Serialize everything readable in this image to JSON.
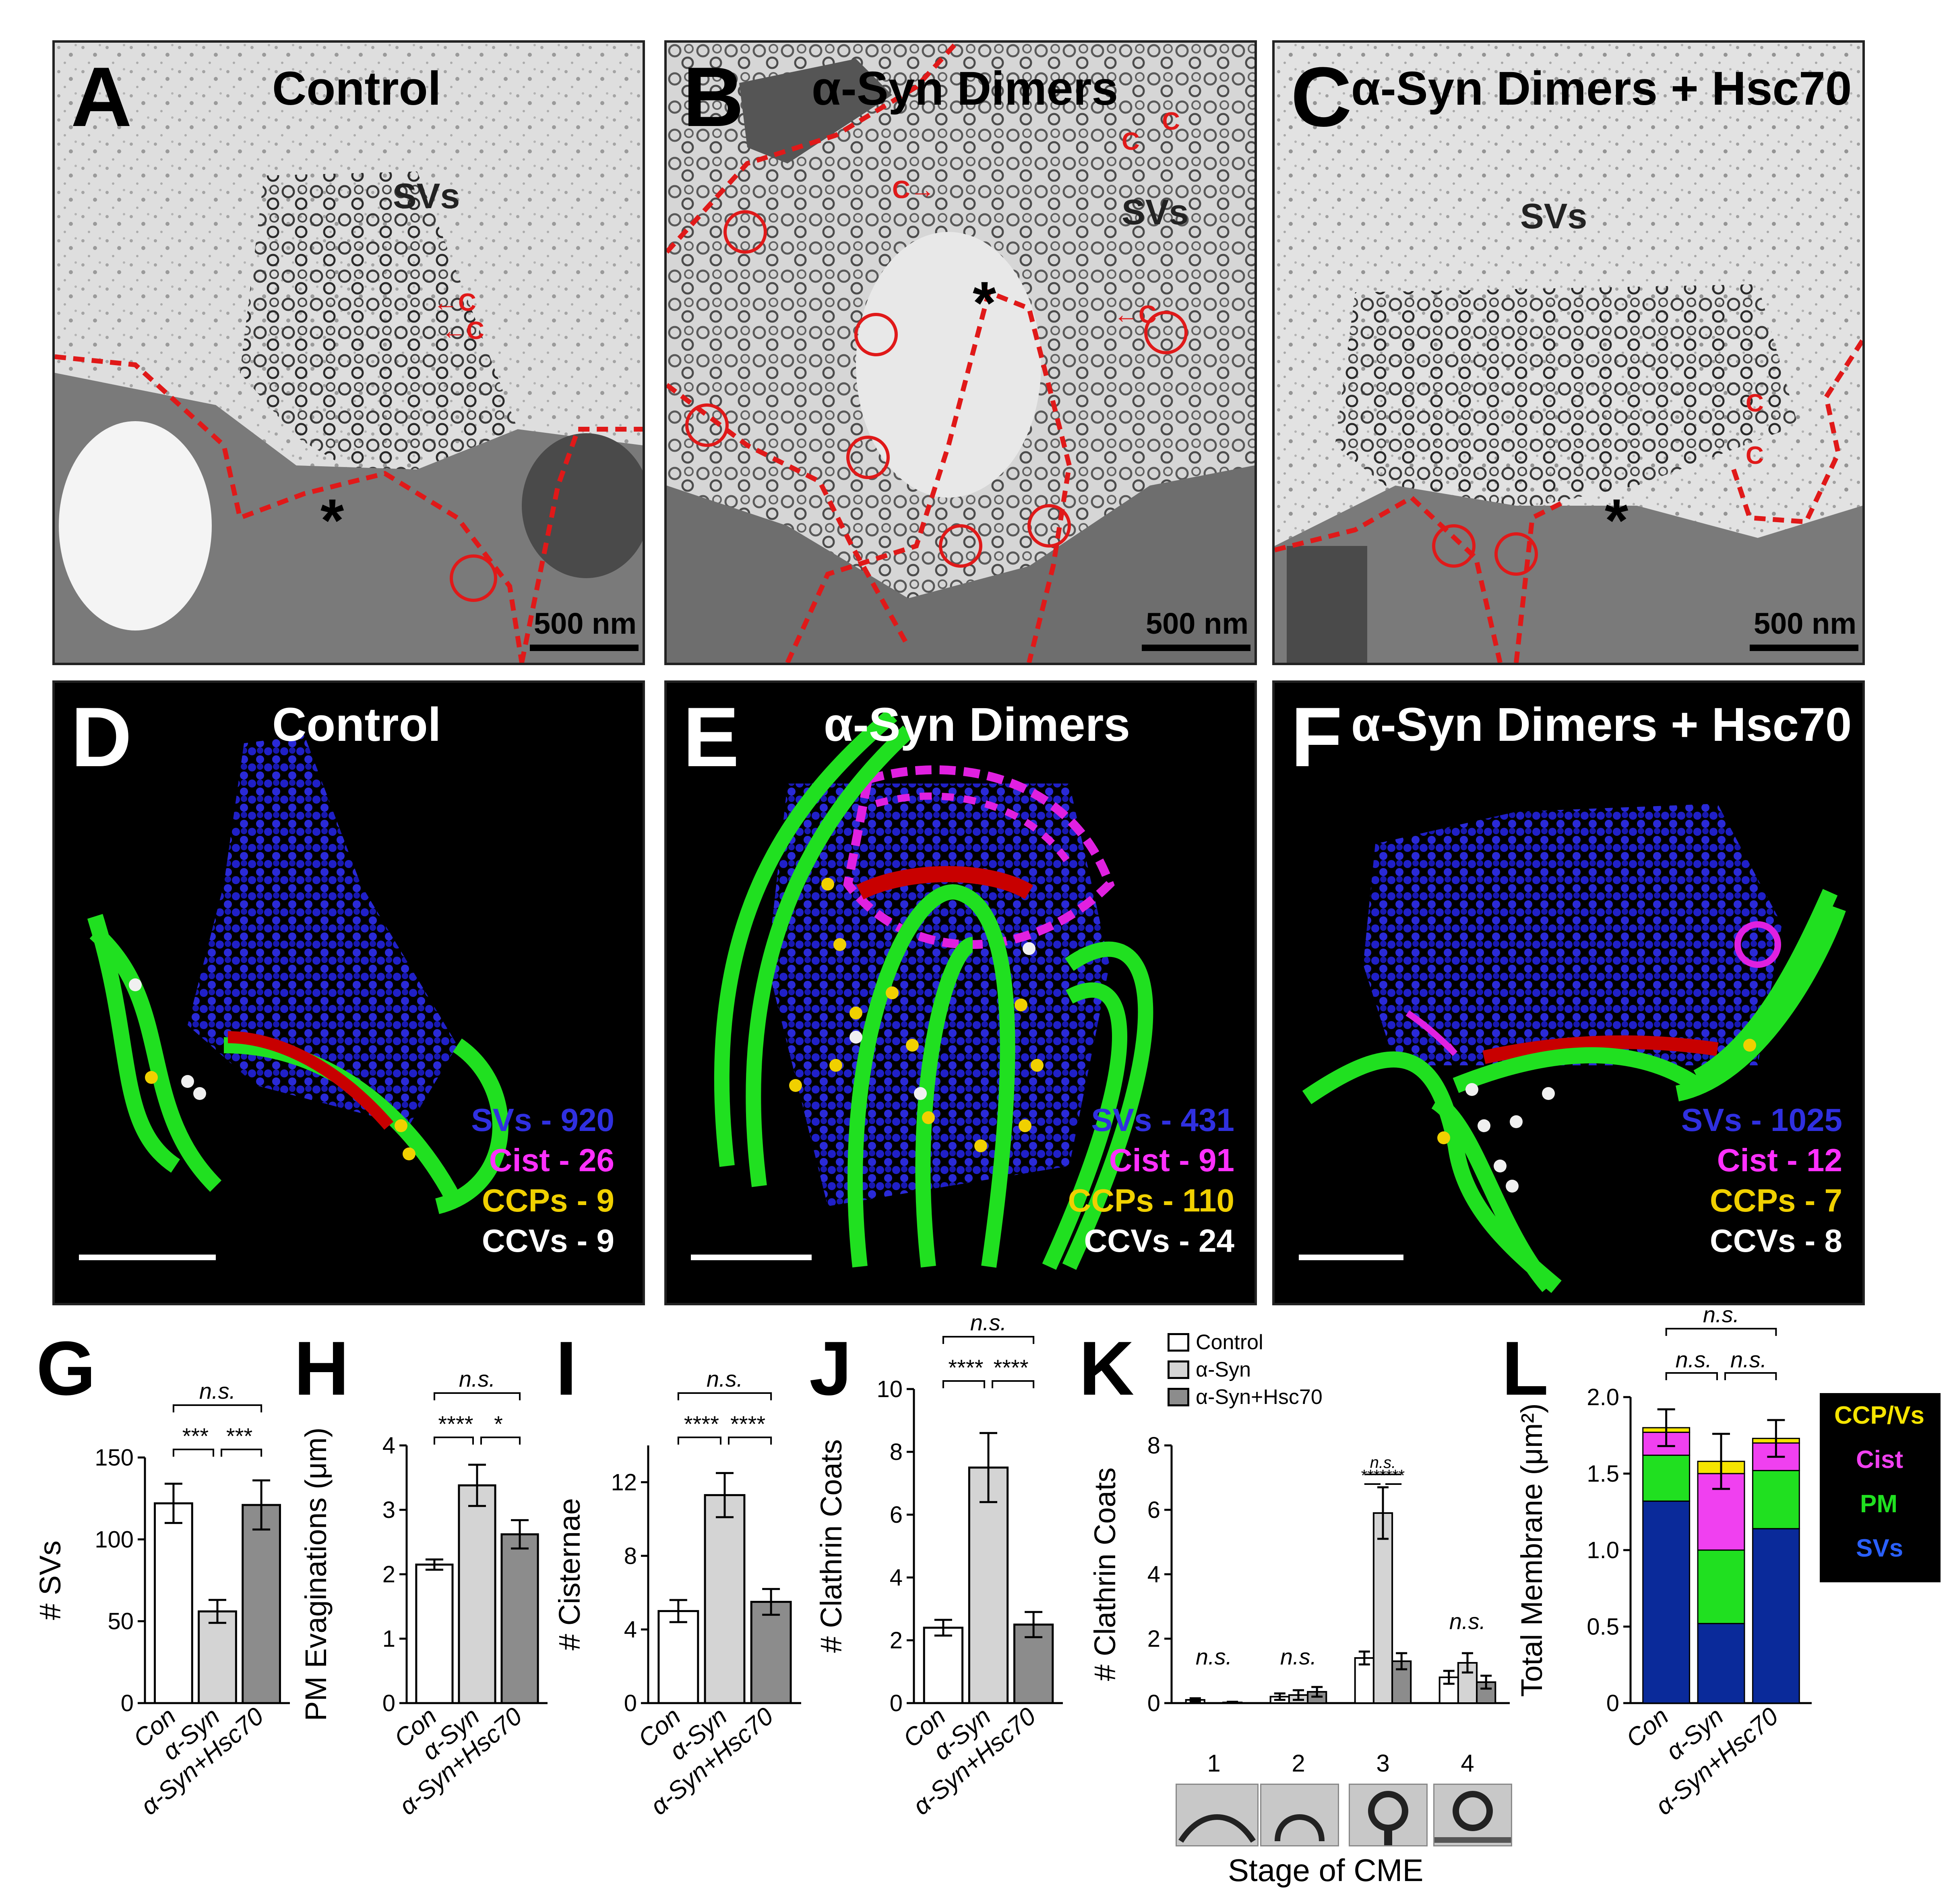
{
  "colors": {
    "sv": "#2020c8",
    "cist": "#e020e0",
    "ccp": "#f0d000",
    "ccv": "#ffffff",
    "pm": "#20e020",
    "az": "#c80000",
    "con_bar": "#ffffff",
    "asyn_bar": "#d4d4d4",
    "hsc_bar": "#8c8c8c",
    "stack_svs": "#0a2a9a",
    "stack_pm": "#20e020",
    "stack_cist": "#f040f0",
    "stack_ccp": "#f5e400",
    "red_outline": "#e01919"
  },
  "em_panels": [
    {
      "letter": "A",
      "title": "Control",
      "sv_label": "SVs",
      "c_marks": [
        "←C",
        "←C"
      ],
      "scale": "500 nm"
    },
    {
      "letter": "B",
      "title": "α-Syn Dimers",
      "sv_label": "SVs",
      "c_marks": [
        "C",
        "C",
        "C→",
        "←C"
      ],
      "scale": "500 nm"
    },
    {
      "letter": "C",
      "title": "α-Syn Dimers + Hsc70",
      "sv_label": "SVs",
      "c_marks": [
        "C",
        "C"
      ],
      "scale": "500 nm"
    }
  ],
  "recon_panels": [
    {
      "letter": "D",
      "title": "Control",
      "counts": {
        "svs": "SVs - 920",
        "cist": "Cist - 26",
        "ccps": "CCPs - 9",
        "ccvs": "CCVs - 9"
      }
    },
    {
      "letter": "E",
      "title": "α-Syn Dimers",
      "counts": {
        "svs": "SVs - 431",
        "cist": "Cist - 91",
        "ccps": "CCPs - 110",
        "ccvs": "CCVs - 24"
      }
    },
    {
      "letter": "F",
      "title": "α-Syn Dimers + Hsc70",
      "counts": {
        "svs": "SVs - 1025",
        "cist": "Cist - 12",
        "ccps": "CCPs - 7",
        "ccvs": "CCVs - 8"
      }
    }
  ],
  "chart_data": [
    {
      "letter": "G",
      "type": "bar",
      "ylabel": "# SVs",
      "categories": [
        "Con",
        "α-Syn",
        "α-Syn+Hsc70"
      ],
      "values": [
        122,
        56,
        121
      ],
      "errors": [
        12,
        7,
        15
      ],
      "ylim": [
        0,
        150
      ],
      "yticks": [
        "0",
        "50",
        "100",
        "150"
      ],
      "sig": {
        "top": "n.s.",
        "left": "***",
        "right": "***"
      }
    },
    {
      "letter": "H",
      "type": "bar",
      "ylabel": "PM Evaginations (μm)",
      "categories": [
        "Con",
        "α-Syn",
        "α-Syn+Hsc70"
      ],
      "values": [
        2.15,
        3.38,
        2.62
      ],
      "errors": [
        0.08,
        0.32,
        0.22
      ],
      "ylim": [
        0,
        4
      ],
      "yticks": [
        "0",
        "1",
        "2",
        "3",
        "4"
      ],
      "sig": {
        "top": "n.s.",
        "left": "****",
        "right": "*"
      }
    },
    {
      "letter": "I",
      "type": "bar",
      "ylabel": "# Cisternae",
      "categories": [
        "Con",
        "α-Syn",
        "α-Syn+Hsc70"
      ],
      "values": [
        5.0,
        11.3,
        5.5
      ],
      "errors": [
        0.6,
        1.2,
        0.7
      ],
      "ylim": [
        0,
        14
      ],
      "yticks": [
        "0",
        "4",
        "8",
        "12"
      ],
      "sig": {
        "top": "n.s.",
        "left": "****",
        "right": "****"
      }
    },
    {
      "letter": "J",
      "type": "bar",
      "ylabel": "# Clathrin Coats",
      "categories": [
        "Con",
        "α-Syn",
        "α-Syn+Hsc70"
      ],
      "values": [
        2.4,
        7.5,
        2.5
      ],
      "errors": [
        0.25,
        1.1,
        0.4
      ],
      "ylim": [
        0,
        10
      ],
      "yticks": [
        "0",
        "2",
        "4",
        "6",
        "8",
        "10"
      ],
      "sig": {
        "top": "n.s.",
        "left": "****",
        "right": "****"
      }
    },
    {
      "letter": "K",
      "type": "bar",
      "ylabel": "# Clathrin Coats",
      "xlabel": "Stage of CME",
      "categories": [
        "1",
        "2",
        "3",
        "4"
      ],
      "series": [
        {
          "name": "Control",
          "values": [
            0.1,
            0.2,
            1.4,
            0.8
          ],
          "errors": [
            0.05,
            0.1,
            0.2,
            0.2
          ]
        },
        {
          "name": "α-Syn",
          "values": [
            0.0,
            0.25,
            5.9,
            1.25
          ],
          "errors": [
            0.0,
            0.15,
            0.8,
            0.3
          ]
        },
        {
          "name": "α-Syn+Hsc70",
          "values": [
            0.02,
            0.35,
            1.3,
            0.65
          ],
          "errors": [
            0.02,
            0.15,
            0.25,
            0.2
          ]
        }
      ],
      "ylim": [
        0,
        8
      ],
      "yticks": [
        "0",
        "2",
        "4",
        "6",
        "8"
      ],
      "sig_ns": [
        "n.s.",
        "n.s.",
        "n.s."
      ],
      "sig3": {
        "top": "n.s.",
        "left": "****",
        "right": "****"
      }
    },
    {
      "letter": "L",
      "type": "bar",
      "stacked": true,
      "ylabel": "Total Membrane (μm²)",
      "categories": [
        "Con",
        "α-Syn",
        "α-Syn+Hsc70"
      ],
      "series": [
        {
          "name": "SVs",
          "values": [
            1.32,
            0.52,
            1.14
          ]
        },
        {
          "name": "PM",
          "values": [
            0.3,
            0.48,
            0.38
          ]
        },
        {
          "name": "Cist",
          "values": [
            0.15,
            0.5,
            0.18
          ]
        },
        {
          "name": "CCP/Vs",
          "values": [
            0.03,
            0.08,
            0.03
          ]
        }
      ],
      "errors": [
        0.12,
        0.18,
        0.12
      ],
      "ylim": [
        0,
        2.0
      ],
      "yticks": [
        "0",
        "0.5",
        "1.0",
        "1.5",
        "2.0"
      ],
      "sig": {
        "top": "n.s.",
        "left": "n.s.",
        "right": "n.s."
      },
      "legend": [
        "CCP/Vs",
        "Cist",
        "PM",
        "SVs"
      ]
    }
  ]
}
